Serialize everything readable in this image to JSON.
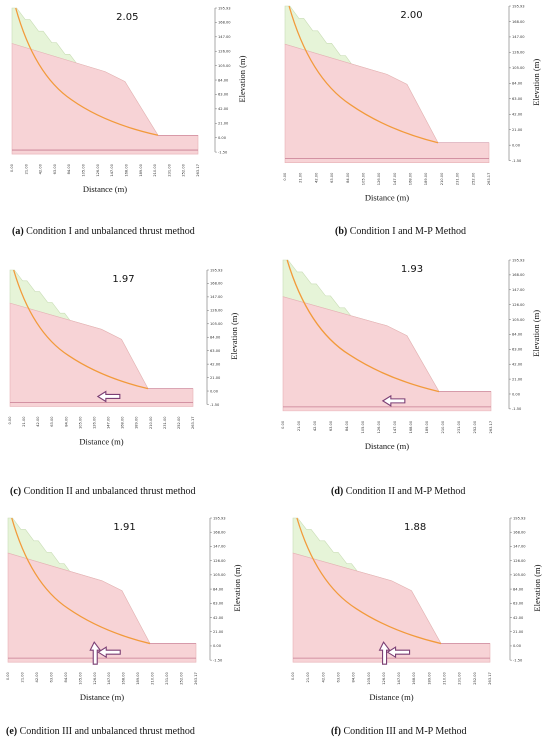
{
  "axis": {
    "x_label": "Distance (m)",
    "y_label": "Elevation (m)",
    "x_ticks": [
      "0.00",
      "21.00",
      "42.00",
      "63.00",
      "84.00",
      "105.00",
      "126.00",
      "147.00",
      "168.00",
      "189.00",
      "210.00",
      "231.00",
      "252.00",
      "263.17"
    ],
    "y_ticks": [
      "195.93",
      "168.00",
      "147.00",
      "126.00",
      "105.00",
      "84.00",
      "63.00",
      "42.00",
      "21.00",
      "0.00",
      "-1.50"
    ]
  },
  "colors": {
    "slip_body": "#f7d3d6",
    "upper_soil": "#e6f4d8",
    "slip_surface": "#f29a3b",
    "arrow": "#7b3f74"
  },
  "panels": [
    {
      "id": "a",
      "fos": "2.05",
      "letter": "(a)",
      "caption": "Condition I and unbalanced thrust method",
      "arrows": "none"
    },
    {
      "id": "b",
      "fos": "2.00",
      "letter": "(b)",
      "caption": "Condition I and M-P Method",
      "arrows": "none"
    },
    {
      "id": "c",
      "fos": "1.97",
      "letter": "(c)",
      "caption": "Condition II and unbalanced thrust method",
      "arrows": "horizontal"
    },
    {
      "id": "d",
      "fos": "1.93",
      "letter": "(d)",
      "caption": "Condition II and M-P Method",
      "arrows": "horizontal"
    },
    {
      "id": "e",
      "fos": "1.91",
      "letter": "(e)",
      "caption": "Condition III and unbalanced thrust method",
      "arrows": "both"
    },
    {
      "id": "f",
      "fos": "1.88",
      "letter": "(f)",
      "caption": "Condition III and M-P Method",
      "arrows": "both"
    }
  ]
}
